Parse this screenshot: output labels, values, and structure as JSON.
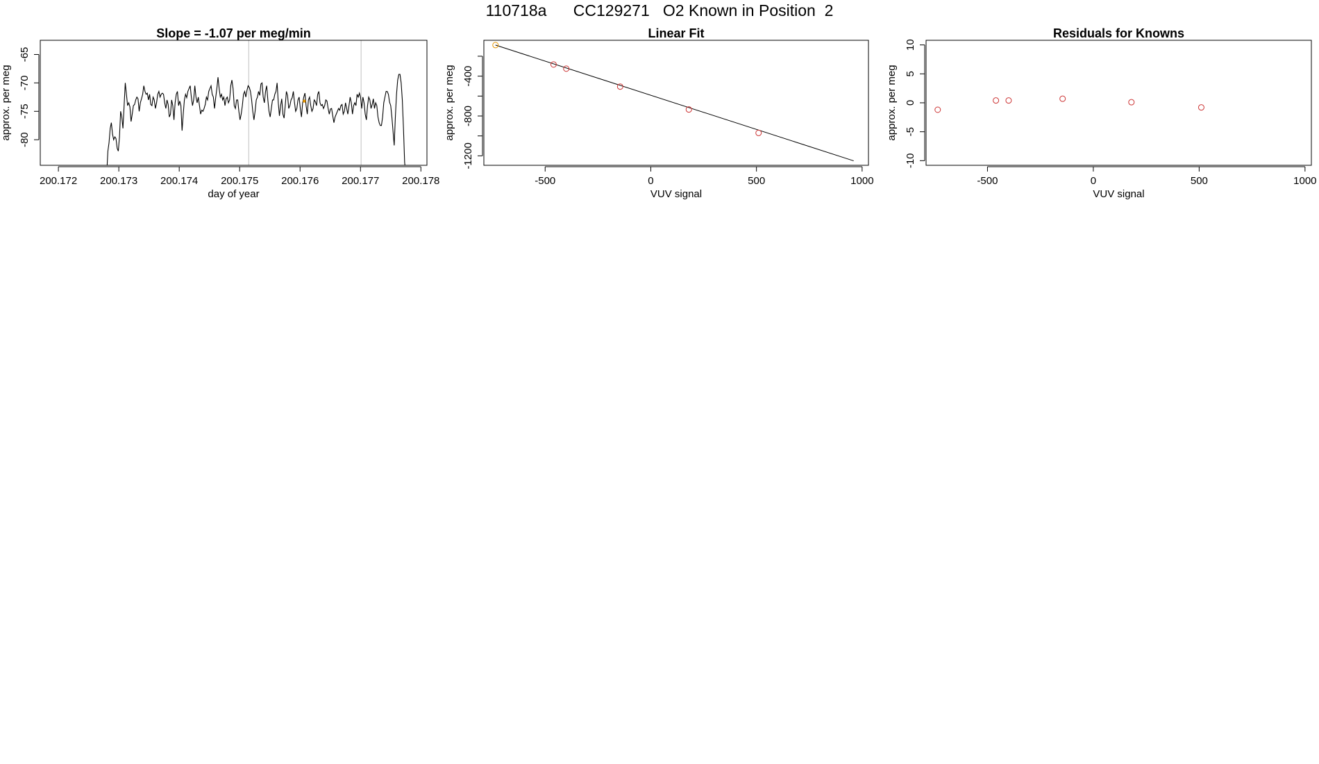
{
  "page_title": "110718a      CC129271   O2 Known in Position  2",
  "colors": {
    "line": "#000000",
    "marker": "#cc3333",
    "highlight": "#e69500",
    "vline": "#bfbfbf"
  },
  "chart_data": [
    {
      "type": "line",
      "title": "Slope =  -1.07  per meg/min",
      "xlabel": "day of year",
      "ylabel": "approx. per meg",
      "xlim": [
        200.1717,
        200.1781
      ],
      "ylim": [
        -84.5,
        -62.5
      ],
      "x_ticks": [
        200.172,
        200.173,
        200.174,
        200.175,
        200.176,
        200.177,
        200.178
      ],
      "x_tick_labels": [
        "200.172",
        "200.173",
        "200.174",
        "200.175",
        "200.176",
        "200.177",
        "200.178"
      ],
      "y_ticks": [
        -80,
        -75,
        -70,
        -65
      ],
      "y_tick_labels": [
        "-80",
        "-75",
        "-70",
        "-65"
      ],
      "vertical_lines": [
        200.17515,
        200.17701
      ],
      "highlight_point": {
        "x": 200.17607,
        "y": -73.2
      },
      "grid": false,
      "series": [
        {
          "x_start": 200.1728,
          "x_end": 200.17775,
          "values": [
            -86,
            -82,
            -80.5,
            -78,
            -77,
            -79,
            -80,
            -79.5,
            -79.8,
            -81.5,
            -82,
            -79.5,
            -75,
            -76,
            -78,
            -74,
            -70,
            -72,
            -74,
            -73.5,
            -74.2,
            -76.8,
            -75.5,
            -74,
            -73.8,
            -73,
            -72.5,
            -72.8,
            -75,
            -73.5,
            -72.8,
            -72,
            -70.5,
            -71.5,
            -72,
            -71.8,
            -73,
            -72,
            -73.8,
            -74,
            -72.5,
            -73,
            -74.5,
            -73.5,
            -72,
            -71.5,
            -72.5,
            -72,
            -71.8,
            -72,
            -73.5,
            -74.5,
            -73,
            -73.8,
            -76,
            -75.5,
            -73,
            -74,
            -76.5,
            -73.5,
            -72,
            -71.5,
            -74,
            -73.2,
            -74,
            -78.4,
            -75.5,
            -73,
            -72,
            -72.6,
            -71.5,
            -71,
            -70.5,
            -72.5,
            -74,
            -73,
            -70.5,
            -72.5,
            -73.5,
            -72.5,
            -74,
            -75.5,
            -74.8,
            -75,
            -74.5,
            -73.8,
            -72.5,
            -73,
            -71.5,
            -71,
            -70.5,
            -72,
            -72.5,
            -74.5,
            -72.6,
            -71,
            -69,
            -71,
            -72.5,
            -72,
            -73,
            -72.5,
            -74,
            -72.8,
            -72.5,
            -73.5,
            -73,
            -70.5,
            -69.5,
            -71,
            -74,
            -74.5,
            -73,
            -73,
            -75,
            -76.5,
            -75.5,
            -74,
            -72,
            -71.5,
            -72.5,
            -71.3,
            -70.5,
            -70.8,
            -71.5,
            -73,
            -75,
            -76.5,
            -75,
            -73,
            -72.5,
            -71.5,
            -72.2,
            -70.2,
            -70,
            -72.5,
            -73.5,
            -71.5,
            -70.5,
            -73,
            -75,
            -76,
            -74.5,
            -73,
            -73,
            -72,
            -71.5,
            -70,
            -73.5,
            -75.8,
            -74,
            -72.8,
            -75.5,
            -76.2,
            -74,
            -71.5,
            -72.2,
            -74.5,
            -74,
            -73,
            -72.6,
            -71.5,
            -73.5,
            -75,
            -74.5,
            -73,
            -72.5,
            -74.5,
            -76,
            -73.5,
            -72.5,
            -71.8,
            -74,
            -75.5,
            -73,
            -72.5,
            -74,
            -75,
            -74.5,
            -73,
            -73.3,
            -74,
            -72,
            -71.5,
            -73.5,
            -74,
            -73.8,
            -74.5,
            -74,
            -73,
            -73.2,
            -74.5,
            -75.5,
            -74.6,
            -74.5,
            -75.8,
            -77,
            -76,
            -75.5,
            -75,
            -74.5,
            -74.8,
            -74,
            -73.8,
            -75.5,
            -75,
            -73.5,
            -74.5,
            -75.5,
            -74,
            -72.5,
            -73.5,
            -75.5,
            -74,
            -73.5,
            -74,
            -72,
            -72.5,
            -71.8,
            -72.6,
            -74.5,
            -72.5,
            -73.5,
            -75.5,
            -76.5,
            -74,
            -72.5,
            -73,
            -74.5,
            -73.8,
            -72.8,
            -74.5,
            -73.5,
            -74,
            -76,
            -77,
            -77.5,
            -77.5,
            -76,
            -73.5,
            -72.5,
            -71.5,
            -71.5,
            -72,
            -73.4,
            -74,
            -76,
            -78.5,
            -81,
            -76,
            -72,
            -69.5,
            -68.5,
            -68.5,
            -70,
            -73,
            -78,
            -84,
            -86
          ]
        }
      ]
    },
    {
      "type": "scatter",
      "title": "Linear Fit",
      "xlabel": "VUV signal",
      "ylabel": "approx. per meg",
      "xlim": [
        -790,
        1030
      ],
      "ylim": [
        -1295,
        -40
      ],
      "x_ticks": [
        -500,
        0,
        500,
        1000
      ],
      "x_tick_labels": [
        "-500",
        "0",
        "500",
        "1000"
      ],
      "y_ticks": [
        -1200,
        -1000,
        -800,
        -600,
        -400,
        -200
      ],
      "y_tick_labels": [
        "-1200",
        "",
        "-800",
        "",
        "-400",
        ""
      ],
      "fit_line": {
        "x": [
          -735,
          960
        ],
        "y": [
          -88,
          -1250
        ]
      },
      "points": [
        {
          "x": -735,
          "y": -88,
          "highlight": true
        },
        {
          "x": -460,
          "y": -283
        },
        {
          "x": -400,
          "y": -325
        },
        {
          "x": -145,
          "y": -505
        },
        {
          "x": 180,
          "y": -735
        },
        {
          "x": 510,
          "y": -970
        }
      ],
      "grid": false
    },
    {
      "type": "scatter",
      "title": "Residuals for Knowns",
      "xlabel": "VUV signal",
      "ylabel": "approx. per meg",
      "xlim": [
        -790,
        1030
      ],
      "ylim": [
        -10.8,
        10.8
      ],
      "x_ticks": [
        -500,
        0,
        500,
        1000
      ],
      "x_tick_labels": [
        "-500",
        "0",
        "500",
        "1000"
      ],
      "y_ticks": [
        -10,
        -5,
        0,
        5,
        10
      ],
      "y_tick_labels": [
        "-10",
        "-5",
        "0",
        "5",
        "10"
      ],
      "points": [
        {
          "x": -735,
          "y": -1.2
        },
        {
          "x": -460,
          "y": 0.4
        },
        {
          "x": -400,
          "y": 0.4
        },
        {
          "x": -145,
          "y": 0.7
        },
        {
          "x": 180,
          "y": 0.1
        },
        {
          "x": 510,
          "y": -0.8
        }
      ],
      "grid": false
    }
  ]
}
